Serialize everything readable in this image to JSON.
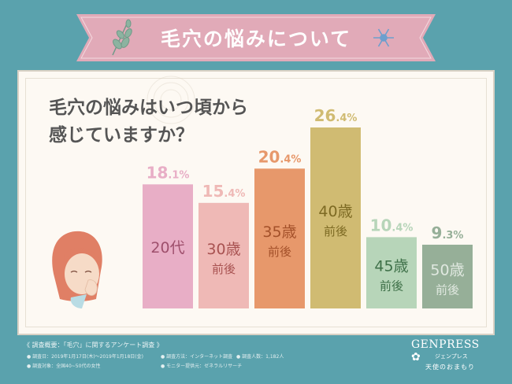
{
  "banner": {
    "title": "毛穴の悩みについて"
  },
  "question": {
    "line1": "毛穴の悩みはいつ頃から",
    "line2": "感じていますか？"
  },
  "chart_data": {
    "type": "bar",
    "categories": [
      {
        "line1": "20代",
        "line2": ""
      },
      {
        "line1": "30歳",
        "line2": "前後"
      },
      {
        "line1": "35歳",
        "line2": "前後"
      },
      {
        "line1": "40歳",
        "line2": "前後"
      },
      {
        "line1": "45歳",
        "line2": "前後"
      },
      {
        "line1": "50歳",
        "line2": "前後"
      }
    ],
    "values": [
      18.1,
      15.4,
      20.4,
      26.4,
      10.4,
      9.3
    ],
    "value_labels": [
      {
        "int": "18",
        "dec": ".1%"
      },
      {
        "int": "15",
        "dec": ".4%"
      },
      {
        "int": "20",
        "dec": ".4%"
      },
      {
        "int": "26",
        "dec": ".4%"
      },
      {
        "int": "10",
        "dec": ".4%"
      },
      {
        "int": "9",
        "dec": ".3%"
      }
    ],
    "colors": [
      "#e8aec6",
      "#efb9b6",
      "#e7986b",
      "#d0bb72",
      "#b7d5b9",
      "#96af98"
    ],
    "label_colors": [
      "#e8aec6",
      "#efb9b6",
      "#e7986b",
      "#d0bb72",
      "#b7d5b9",
      "#96af98"
    ],
    "text_colors": [
      "#9e4f6c",
      "#a85251",
      "#a4512a",
      "#7d6a23",
      "#3e7048",
      "#e0e8e0"
    ],
    "ylim": [
      0,
      30
    ]
  },
  "footer": {
    "title": "《 調査概要：「毛穴」に関するアンケート調査 》",
    "date": "● 調査日：2019年1月17日(木)～2019年1月18日(金)",
    "method": "● 調査方法：インターネット調査",
    "count": "● 調査人数：1,182人",
    "target": "● 調査対象：全国40~50代の女性",
    "provider": "● モニター提供元：ゼネラルリサーチ"
  },
  "logo": {
    "name": "GENPRESS",
    "kana": "ジェンプレス",
    "tagline": "天使のおまもり"
  }
}
